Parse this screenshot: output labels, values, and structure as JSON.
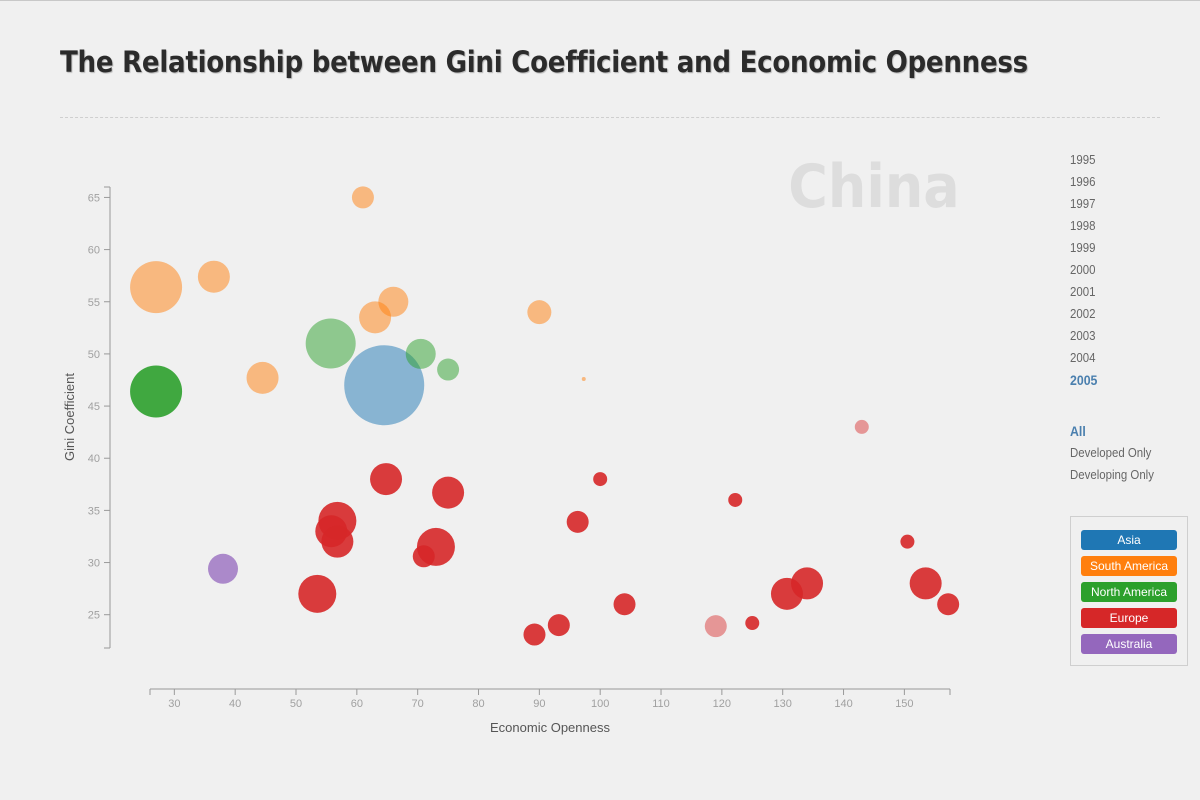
{
  "page": {
    "title": "The Relationship between Gini Coefficient and Economic Openness"
  },
  "years": [
    "1995",
    "1996",
    "1997",
    "1998",
    "1999",
    "2000",
    "2001",
    "2002",
    "2003",
    "2004",
    "2005"
  ],
  "selected_year": "2005",
  "filters": [
    "All",
    "Developed Only",
    "Developing Only"
  ],
  "selected_filter": "All",
  "legend": [
    {
      "label": "Asia",
      "color": "#1f77b4"
    },
    {
      "label": "South America",
      "color": "#ff7f0e"
    },
    {
      "label": "North America",
      "color": "#2ca02c"
    },
    {
      "label": "Europe",
      "color": "#d62728"
    },
    {
      "label": "Australia",
      "color": "#9467bd"
    }
  ],
  "chart_data": {
    "type": "scatter",
    "title": "",
    "xlabel": "Economic Openness",
    "ylabel": "Gini Coefficient",
    "highlight_label": "China",
    "xlim": [
      26,
      157.5
    ],
    "ylim": [
      22,
      66
    ],
    "xticks": [
      30,
      40,
      50,
      60,
      70,
      80,
      90,
      100,
      110,
      120,
      130,
      140,
      150
    ],
    "yticks": [
      25,
      30,
      35,
      40,
      45,
      50,
      55,
      60,
      65
    ],
    "grid": false,
    "legend_position": "right",
    "points": [
      {
        "x": 61,
        "y": 65,
        "size": 11,
        "region": "South America"
      },
      {
        "x": 27,
        "y": 56.4,
        "size": 26,
        "region": "South America"
      },
      {
        "x": 36.5,
        "y": 57.4,
        "size": 16,
        "region": "South America"
      },
      {
        "x": 66,
        "y": 55,
        "size": 15,
        "region": "South America"
      },
      {
        "x": 63,
        "y": 53.5,
        "size": 16,
        "region": "South America"
      },
      {
        "x": 90,
        "y": 54,
        "size": 12,
        "region": "South America"
      },
      {
        "x": 44.5,
        "y": 47.7,
        "size": 16,
        "region": "South America"
      },
      {
        "x": 97.3,
        "y": 47.6,
        "size": 2,
        "region": "South America"
      },
      {
        "x": 55.7,
        "y": 51,
        "size": 25,
        "region": "North America"
      },
      {
        "x": 70.5,
        "y": 50,
        "size": 15,
        "region": "North America"
      },
      {
        "x": 75,
        "y": 48.5,
        "size": 11,
        "region": "North America"
      },
      {
        "x": 27,
        "y": 46.4,
        "size": 26,
        "region": "North America"
      },
      {
        "x": 64.5,
        "y": 47,
        "size": 40,
        "region": "Asia"
      },
      {
        "x": 143,
        "y": 43,
        "size": 7,
        "region": "Europe",
        "faded": true
      },
      {
        "x": 64.8,
        "y": 38,
        "size": 16,
        "region": "Europe"
      },
      {
        "x": 75,
        "y": 36.7,
        "size": 16,
        "region": "Europe"
      },
      {
        "x": 100,
        "y": 38,
        "size": 7,
        "region": "Europe"
      },
      {
        "x": 56.8,
        "y": 34,
        "size": 19,
        "region": "Europe"
      },
      {
        "x": 55.8,
        "y": 33,
        "size": 16,
        "region": "Europe"
      },
      {
        "x": 56.8,
        "y": 32,
        "size": 16,
        "region": "Europe"
      },
      {
        "x": 73,
        "y": 31.5,
        "size": 19,
        "region": "Europe"
      },
      {
        "x": 71,
        "y": 30.6,
        "size": 11,
        "region": "Europe"
      },
      {
        "x": 96.3,
        "y": 33.9,
        "size": 11,
        "region": "Europe"
      },
      {
        "x": 122.2,
        "y": 36,
        "size": 7,
        "region": "Europe"
      },
      {
        "x": 150.5,
        "y": 32,
        "size": 7,
        "region": "Europe"
      },
      {
        "x": 53.5,
        "y": 27,
        "size": 19,
        "region": "Europe"
      },
      {
        "x": 104,
        "y": 26,
        "size": 11,
        "region": "Europe"
      },
      {
        "x": 93.2,
        "y": 24,
        "size": 11,
        "region": "Europe"
      },
      {
        "x": 89.2,
        "y": 23.1,
        "size": 11,
        "region": "Europe"
      },
      {
        "x": 119,
        "y": 23.9,
        "size": 11,
        "region": "Europe",
        "faded": true
      },
      {
        "x": 125,
        "y": 24.2,
        "size": 7,
        "region": "Europe"
      },
      {
        "x": 130.7,
        "y": 27,
        "size": 16,
        "region": "Europe"
      },
      {
        "x": 134,
        "y": 28,
        "size": 16,
        "region": "Europe"
      },
      {
        "x": 153.5,
        "y": 28,
        "size": 16,
        "region": "Europe"
      },
      {
        "x": 157.2,
        "y": 26,
        "size": 11,
        "region": "Europe"
      },
      {
        "x": 38,
        "y": 29.4,
        "size": 15,
        "region": "Australia"
      }
    ]
  }
}
